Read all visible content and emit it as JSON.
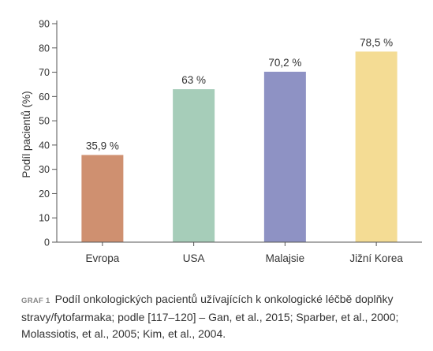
{
  "chart_data": {
    "type": "bar",
    "categories": [
      "Evropa",
      "USA",
      "Malajsie",
      "Jižní Korea"
    ],
    "values": [
      35.9,
      63,
      70.2,
      78.5
    ],
    "value_labels": [
      "35,9 %",
      "63 %",
      "70,2 %",
      "78,5 %"
    ],
    "colors": [
      "#CF9070",
      "#A6CDB9",
      "#8E92C4",
      "#F4DC94"
    ],
    "title": "",
    "xlabel": "",
    "ylabel": "Podíl pacientů (%)",
    "ylim": [
      0,
      90
    ],
    "yticks": [
      0,
      10,
      20,
      30,
      40,
      50,
      60,
      70,
      80,
      90
    ],
    "grid": false,
    "legend": "none"
  },
  "caption": {
    "tag": "GRAF 1",
    "text": "Podíl onkologických pacientů užívajících k onkologické léčbě doplňky stravy/fytofarmaka; podle [117–120] – Gan, et al., 2015; Sparber, et al., 2000; Molassiotis, et al., 2005; Kim, et al., 2004."
  }
}
